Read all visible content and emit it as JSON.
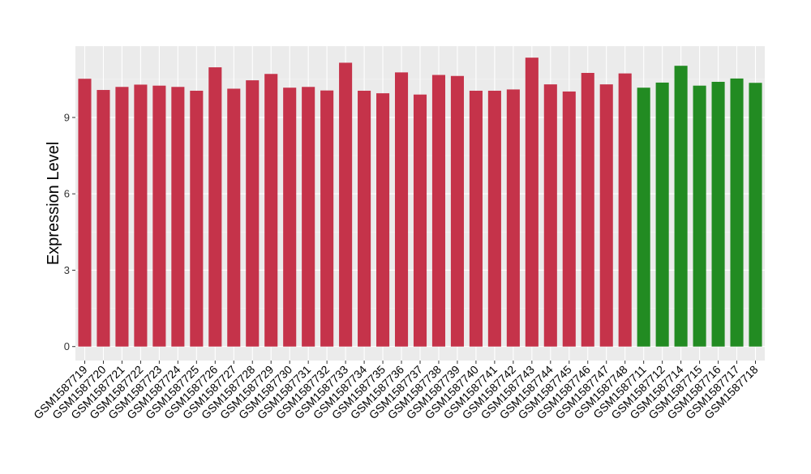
{
  "chart_data": {
    "type": "bar",
    "ylabel": "Expression Level",
    "xlabel": "",
    "ylim": [
      -0.55,
      11.8
    ],
    "yticks": [
      0,
      3,
      6,
      9
    ],
    "ytick_labels": [
      "0",
      "3",
      "6",
      "9"
    ],
    "grid": true,
    "legend": "none",
    "colors": {
      "red": "#C5334A",
      "green": "#228B22",
      "panel": "#EBEBEB",
      "grid_major": "#FFFFFF",
      "text": "#000000"
    },
    "categories": [
      "GSM1587719",
      "GSM1587720",
      "GSM1587721",
      "GSM1587722",
      "GSM1587723",
      "GSM1587724",
      "GSM1587725",
      "GSM1587726",
      "GSM1587727",
      "GSM1587728",
      "GSM1587729",
      "GSM1587730",
      "GSM1587731",
      "GSM1587732",
      "GSM1587733",
      "GSM1587734",
      "GSM1587735",
      "GSM1587736",
      "GSM1587737",
      "GSM1587738",
      "GSM1587739",
      "GSM1587740",
      "GSM1587741",
      "GSM1587742",
      "GSM1587743",
      "GSM1587744",
      "GSM1587745",
      "GSM1587746",
      "GSM1587747",
      "GSM1587748",
      "GSM1587711",
      "GSM1587712",
      "GSM1587714",
      "GSM1587715",
      "GSM1587716",
      "GSM1587717",
      "GSM1587718"
    ],
    "values": [
      10.52,
      10.08,
      10.2,
      10.29,
      10.25,
      10.2,
      10.05,
      10.97,
      10.13,
      10.46,
      10.71,
      10.17,
      10.2,
      10.06,
      11.15,
      10.05,
      9.95,
      10.77,
      9.9,
      10.67,
      10.63,
      10.05,
      10.05,
      10.1,
      11.35,
      10.3,
      10.02,
      10.75,
      10.3,
      10.73,
      10.17,
      10.37,
      11.03,
      10.25,
      10.4,
      10.53,
      10.36
    ],
    "bar_colors": [
      "red",
      "red",
      "red",
      "red",
      "red",
      "red",
      "red",
      "red",
      "red",
      "red",
      "red",
      "red",
      "red",
      "red",
      "red",
      "red",
      "red",
      "red",
      "red",
      "red",
      "red",
      "red",
      "red",
      "red",
      "red",
      "red",
      "red",
      "red",
      "red",
      "red",
      "green",
      "green",
      "green",
      "green",
      "green",
      "green",
      "green"
    ]
  }
}
